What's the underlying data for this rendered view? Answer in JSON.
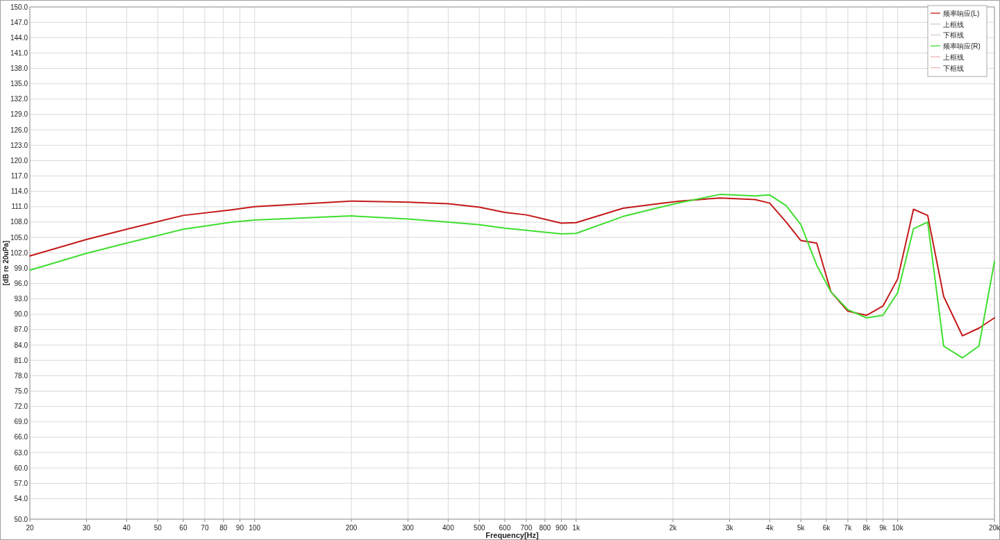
{
  "chart_data": {
    "type": "line",
    "xlabel": "Frequency[Hz]",
    "ylabel": "[dB re 20uPa]",
    "log": "x",
    "grid": true,
    "legend": "top right",
    "x": [
      20,
      30,
      40,
      60,
      85,
      100,
      200,
      300,
      400,
      500,
      600,
      700,
      900,
      1000,
      1400,
      1800,
      2100,
      2800,
      3600,
      4000,
      4500,
      5000,
      5600,
      6200,
      7000,
      8000,
      9000,
      10000,
      11200,
      12400,
      13900,
      15900,
      17900,
      20000
    ],
    "xlim": [
      20,
      20000
    ],
    "xticks": [
      20,
      30,
      40,
      50,
      60,
      70,
      80,
      90,
      100,
      200,
      300,
      400,
      500,
      600,
      700,
      800,
      900,
      {
        "value": 1000,
        "label": "1k"
      },
      {
        "value": 2000,
        "label": "2k"
      },
      {
        "value": 3000,
        "label": "3k"
      },
      {
        "value": 4000,
        "label": "4k"
      },
      {
        "value": 5000,
        "label": "5k"
      },
      {
        "value": 6000,
        "label": "6k"
      },
      {
        "value": 7000,
        "label": "7k"
      },
      {
        "value": 8000,
        "label": "8k"
      },
      {
        "value": 9000,
        "label": "9k"
      },
      {
        "value": 10000,
        "label": "10k"
      },
      {
        "value": 20000,
        "label": "20k"
      }
    ],
    "ylim": [
      50,
      150
    ],
    "yticks": [
      {
        "value": 50,
        "label": "50.0"
      },
      {
        "value": 54,
        "label": "54.0"
      },
      {
        "value": 57,
        "label": "57.0"
      },
      {
        "value": 60,
        "label": "60.0"
      },
      {
        "value": 63,
        "label": "63.0"
      },
      {
        "value": 66,
        "label": "66.0"
      },
      {
        "value": 69,
        "label": "69.0"
      },
      {
        "value": 72,
        "label": "72.0"
      },
      {
        "value": 75,
        "label": "75.0"
      },
      {
        "value": 78,
        "label": "78.0"
      },
      {
        "value": 81,
        "label": "81.0"
      },
      {
        "value": 84,
        "label": "84.0"
      },
      {
        "value": 87,
        "label": "87.0"
      },
      {
        "value": 90,
        "label": "90.0"
      },
      {
        "value": 93,
        "label": "93.0"
      },
      {
        "value": 96,
        "label": "96.0"
      },
      {
        "value": 99,
        "label": "99.0"
      },
      {
        "value": 102,
        "label": "102.0"
      },
      {
        "value": 105,
        "label": "105.0"
      },
      {
        "value": 108,
        "label": "108.0"
      },
      {
        "value": 111,
        "label": "111.0"
      },
      {
        "value": 114,
        "label": "114.0"
      },
      {
        "value": 117,
        "label": "117.0"
      },
      {
        "value": 120,
        "label": "120.0"
      },
      {
        "value": 123,
        "label": "123.0"
      },
      {
        "value": 126,
        "label": "126.0"
      },
      {
        "value": 129,
        "label": "129.0"
      },
      {
        "value": 132,
        "label": "132.0"
      },
      {
        "value": 135,
        "label": "135.0"
      },
      {
        "value": 138,
        "label": "138.0"
      },
      {
        "value": 141,
        "label": "141.0"
      },
      {
        "value": 144,
        "label": "144.0"
      },
      {
        "value": 147,
        "label": "147.0"
      },
      {
        "value": 150,
        "label": "150.0"
      }
    ],
    "series": [
      {
        "name": "频率响应(L)",
        "color": "#c41818",
        "values": [
          101.4,
          104.6,
          106.6,
          109.3,
          110.4,
          111.0,
          112.1,
          111.9,
          111.6,
          110.9,
          109.9,
          109.4,
          107.8,
          107.9,
          110.7,
          111.6,
          112.1,
          112.7,
          112.4,
          111.7,
          108.0,
          104.4,
          103.9,
          94.4,
          90.6,
          89.8,
          91.6,
          96.9,
          110.5,
          109.3,
          93.5,
          85.8,
          87.3,
          89.3
        ]
      },
      {
        "name": "上框线",
        "color": "#dcc8c8",
        "values": [
          null,
          null,
          null,
          null,
          null,
          null,
          null,
          null,
          null,
          null,
          null,
          null,
          null,
          null,
          null,
          null,
          null,
          null,
          null,
          null,
          null,
          null,
          null,
          null,
          null,
          null,
          null,
          null,
          null,
          null,
          null,
          null,
          null,
          null
        ]
      },
      {
        "name": "下框线",
        "color": "#dcc8c8",
        "values": [
          null,
          null,
          null,
          null,
          null,
          null,
          null,
          null,
          null,
          null,
          null,
          null,
          null,
          null,
          null,
          null,
          null,
          null,
          null,
          null,
          null,
          null,
          null,
          null,
          null,
          null,
          null,
          null,
          null,
          null,
          null,
          null,
          null,
          null
        ]
      },
      {
        "name": "频率响应(R)",
        "color": "#3ede2e",
        "values": [
          98.6,
          101.9,
          103.9,
          106.6,
          108.0,
          108.4,
          109.2,
          108.6,
          108.0,
          107.5,
          106.8,
          106.4,
          105.7,
          105.8,
          109.1,
          110.8,
          111.8,
          113.4,
          113.1,
          113.3,
          111.2,
          107.5,
          99.6,
          94.4,
          90.9,
          89.3,
          89.8,
          94.2,
          106.7,
          108.0,
          83.8,
          81.5,
          83.8,
          100.3
        ]
      },
      {
        "name": "上框线",
        "color": "#f0b4b4",
        "values": [
          null,
          null,
          null,
          null,
          null,
          null,
          null,
          null,
          null,
          null,
          null,
          null,
          null,
          null,
          null,
          null,
          null,
          null,
          null,
          null,
          null,
          null,
          null,
          null,
          null,
          null,
          null,
          null,
          null,
          null,
          null,
          null,
          null,
          null
        ]
      },
      {
        "name": "下框线",
        "color": "#f0b4b4",
        "values": [
          null,
          null,
          null,
          null,
          null,
          null,
          null,
          null,
          null,
          null,
          null,
          null,
          null,
          null,
          null,
          null,
          null,
          null,
          null,
          null,
          null,
          null,
          null,
          null,
          null,
          null,
          null,
          null,
          null,
          null,
          null,
          null,
          null,
          null
        ]
      }
    ]
  }
}
